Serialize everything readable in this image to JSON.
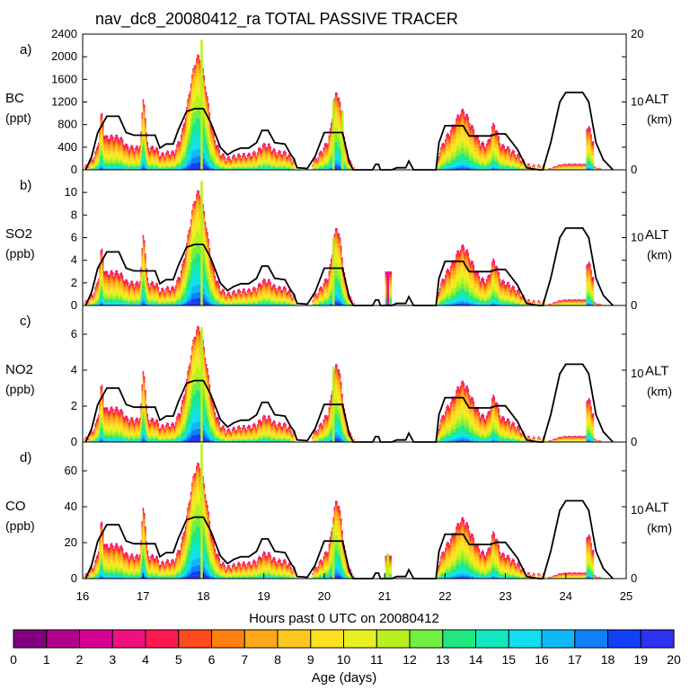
{
  "title": "nav_dc8_20080412_ra TOTAL PASSIVE TRACER",
  "xlabel": "Hours past 0 UTC on 20080412",
  "x_ticks": [
    "16",
    "17",
    "18",
    "19",
    "20",
    "21",
    "22",
    "23",
    "24",
    "25"
  ],
  "colorbar": {
    "label": "Age (days)",
    "ticks": [
      "0",
      "1",
      "2",
      "3",
      "4",
      "5",
      "6",
      "7",
      "8",
      "9",
      "10",
      "11",
      "12",
      "13",
      "14",
      "15",
      "16",
      "17",
      "18",
      "19",
      "20"
    ],
    "colors": [
      "#800080",
      "#b0008c",
      "#d80090",
      "#f01080",
      "#ff1850",
      "#ff4a20",
      "#ff8010",
      "#ffa818",
      "#ffc820",
      "#ffe020",
      "#e8f020",
      "#b8f020",
      "#70f040",
      "#20e880",
      "#10e8c0",
      "#10e0f0",
      "#10b8f8",
      "#1080f8",
      "#1040f8",
      "#3030f0"
    ]
  },
  "chart_data": [
    {
      "type": "area",
      "panel": "a)",
      "species": "BC",
      "unit": "(ppt)",
      "yticks": [
        "0",
        "400",
        "800",
        "1200",
        "1600",
        "2000",
        "2400"
      ],
      "ylim": [
        0,
        2400
      ],
      "y2label": "ALT",
      "y2unit": "(km)",
      "y2ticks": [
        "0",
        "10",
        "20"
      ],
      "y2lim": [
        0,
        20
      ],
      "peaks": [
        {
          "x": 17.97,
          "y": 2300
        },
        {
          "x": 20.15,
          "y": 1250
        },
        {
          "x": 20.3,
          "y": 1050
        }
      ]
    },
    {
      "type": "area",
      "panel": "b)",
      "species": "SO2",
      "unit": "(ppb)",
      "yticks": [
        "0",
        "2",
        "4",
        "6",
        "8",
        "10"
      ],
      "ylim": [
        0,
        12
      ],
      "y2label": "ALT",
      "y2unit": "(km)",
      "y2ticks": [
        "0",
        "10"
      ],
      "y2lim": [
        0,
        20
      ],
      "peaks": [
        {
          "x": 17.97,
          "y": 11
        },
        {
          "x": 20.15,
          "y": 6
        },
        {
          "x": 21.05,
          "y": 2.9
        }
      ]
    },
    {
      "type": "area",
      "panel": "c)",
      "species": "NO2",
      "unit": "(ppb)",
      "yticks": [
        "0",
        "2",
        "4",
        "6"
      ],
      "ylim": [
        0,
        7.6
      ],
      "y2label": "ALT",
      "y2unit": "(km)",
      "y2ticks": [
        "0",
        "10"
      ],
      "y2lim": [
        0,
        20
      ],
      "peaks": [
        {
          "x": 17.97,
          "y": 6.4
        },
        {
          "x": 20.15,
          "y": 4.2
        }
      ]
    },
    {
      "type": "area",
      "panel": "d)",
      "species": "CO",
      "unit": "(ppb)",
      "yticks": [
        "0",
        "20",
        "40",
        "60"
      ],
      "ylim": [
        0,
        76
      ],
      "y2label": "ALT",
      "y2unit": "(km)",
      "y2ticks": [
        "0",
        "10"
      ],
      "y2lim": [
        0,
        20
      ],
      "peaks": [
        {
          "x": 17.97,
          "y": 75
        },
        {
          "x": 20.15,
          "y": 30
        },
        {
          "x": 21.05,
          "y": 14
        }
      ]
    }
  ],
  "altitude_track_km": [
    [
      16.05,
      0
    ],
    [
      16.15,
      2
    ],
    [
      16.25,
      5.5
    ],
    [
      16.4,
      7.9
    ],
    [
      16.6,
      7.9
    ],
    [
      16.72,
      5.5
    ],
    [
      16.85,
      5.1
    ],
    [
      17.2,
      5.1
    ],
    [
      17.28,
      3.2
    ],
    [
      17.38,
      3.8
    ],
    [
      17.5,
      3.8
    ],
    [
      17.58,
      5.8
    ],
    [
      17.72,
      8.6
    ],
    [
      17.85,
      9.0
    ],
    [
      18.0,
      9.0
    ],
    [
      18.12,
      7.0
    ],
    [
      18.28,
      3.3
    ],
    [
      18.4,
      2.2
    ],
    [
      18.5,
      2.8
    ],
    [
      18.62,
      3.2
    ],
    [
      18.75,
      3.2
    ],
    [
      18.88,
      4.0
    ],
    [
      18.97,
      5.8
    ],
    [
      19.07,
      5.8
    ],
    [
      19.18,
      4.0
    ],
    [
      19.35,
      3.8
    ],
    [
      19.45,
      2.2
    ],
    [
      19.5,
      1.6
    ],
    [
      19.55,
      0.3
    ],
    [
      19.72,
      0.2
    ],
    [
      19.85,
      2.0
    ],
    [
      20.0,
      5.5
    ],
    [
      20.3,
      5.5
    ],
    [
      20.42,
      1.0
    ],
    [
      20.48,
      0
    ],
    [
      20.8,
      0
    ],
    [
      20.85,
      0.8
    ],
    [
      20.9,
      0.8
    ],
    [
      20.93,
      0
    ],
    [
      21.12,
      0
    ],
    [
      21.2,
      0.3
    ],
    [
      21.35,
      0.3
    ],
    [
      21.4,
      1.3
    ],
    [
      21.48,
      0
    ],
    [
      21.85,
      0
    ],
    [
      21.9,
      4.0
    ],
    [
      22.0,
      6.5
    ],
    [
      22.3,
      6.5
    ],
    [
      22.4,
      5.0
    ],
    [
      22.75,
      5.0
    ],
    [
      22.85,
      5.3
    ],
    [
      23.0,
      5.3
    ],
    [
      23.2,
      3.0
    ],
    [
      23.35,
      0.3
    ],
    [
      23.55,
      0
    ],
    [
      23.62,
      0
    ],
    [
      23.75,
      4.0
    ],
    [
      23.9,
      10.0
    ],
    [
      24.0,
      11.4
    ],
    [
      24.28,
      11.4
    ],
    [
      24.38,
      10.0
    ],
    [
      24.5,
      4.0
    ],
    [
      24.62,
      1.5
    ],
    [
      24.78,
      0
    ]
  ]
}
